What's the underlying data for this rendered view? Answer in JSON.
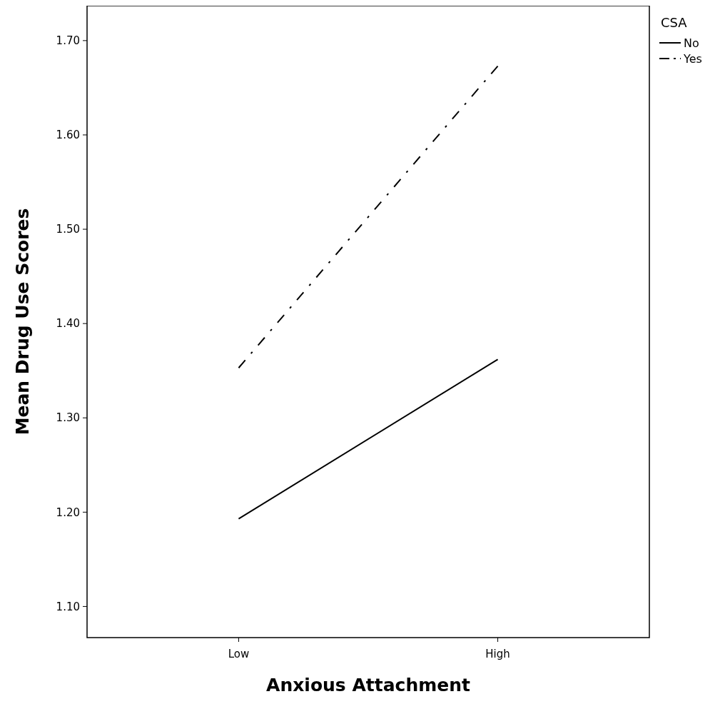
{
  "chart_data": {
    "type": "line",
    "xlabel": "Anxious Attachment",
    "ylabel": "Mean Drug Use Scores",
    "legend_title": "CSA",
    "categories": [
      "Low",
      "High"
    ],
    "series": [
      {
        "name": "No",
        "color": "#000000",
        "line_style": "solid",
        "values": [
          1.193,
          1.362
        ]
      },
      {
        "name": "Yes",
        "color": "#000000",
        "line_style": "dashed",
        "values": [
          1.353,
          1.673
        ]
      }
    ],
    "ylim": [
      1.067,
      1.737
    ],
    "yticks": [
      {
        "value": 1.1,
        "label": "1.10"
      },
      {
        "value": 1.2,
        "label": "1.20"
      },
      {
        "value": 1.3,
        "label": "1.30"
      },
      {
        "value": 1.4,
        "label": "1.40"
      },
      {
        "value": 1.5,
        "label": "1.50"
      },
      {
        "value": 1.6,
        "label": "1.60"
      },
      {
        "value": 1.7,
        "label": "1.70"
      }
    ],
    "grid": false,
    "legend": "top right",
    "marker": "none"
  }
}
